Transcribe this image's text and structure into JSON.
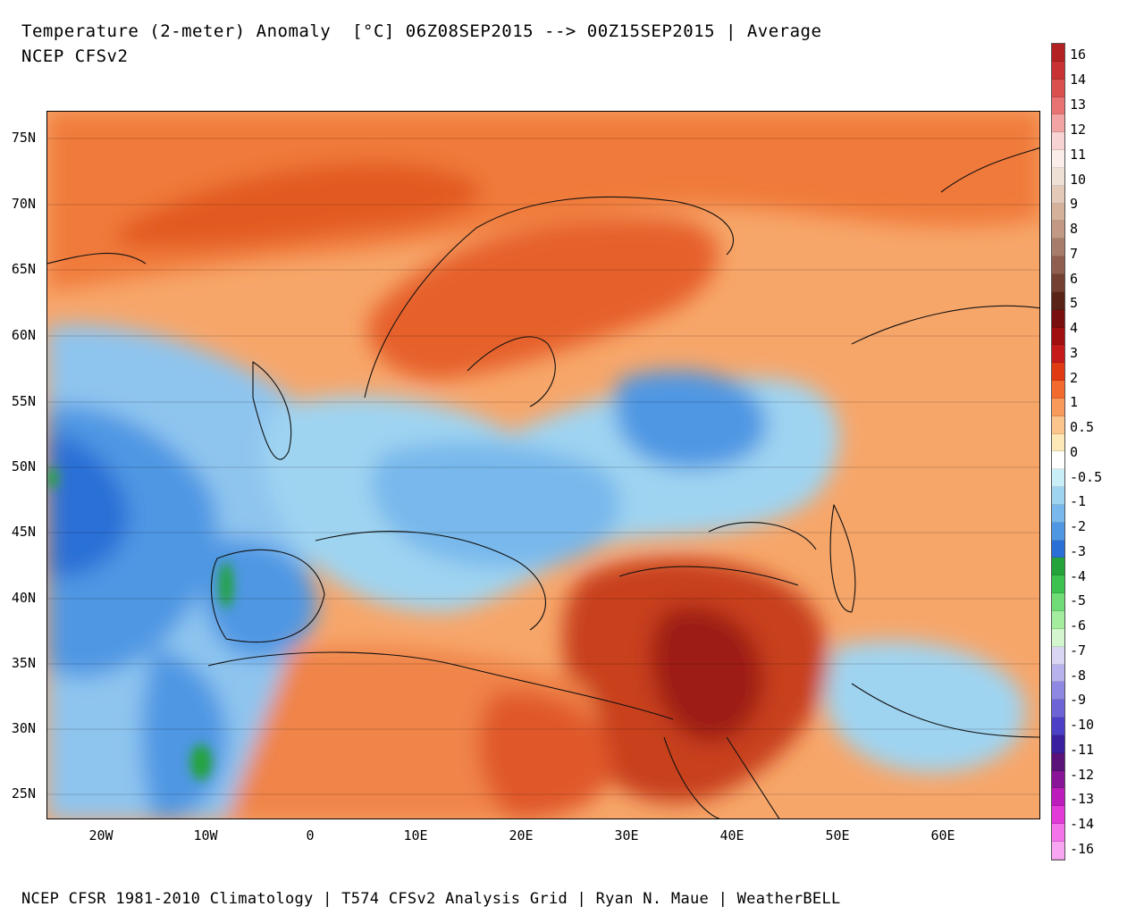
{
  "header": {
    "title": "Temperature (2-meter) Anomaly  [°C] 06Z08SEP2015 --> 00Z15SEP2015 | Average",
    "subtitle": "NCEP CFSv2"
  },
  "footer": {
    "text": "NCEP CFSR 1981-2010 Climatology | T574 CFSv2 Analysis Grid | Ryan N. Maue | WeatherBELL"
  },
  "map": {
    "latitude_labels": [
      "75N",
      "70N",
      "65N",
      "60N",
      "55N",
      "50N",
      "45N",
      "40N",
      "35N",
      "30N",
      "25N"
    ],
    "longitude_labels": [
      "20W",
      "10W",
      "0",
      "10E",
      "20E",
      "30E",
      "40E",
      "50E",
      "60E"
    ]
  },
  "colorbar": {
    "unit": "°C",
    "labels": [
      "16",
      "14",
      "13",
      "12",
      "11",
      "10",
      "9",
      "8",
      "7",
      "6",
      "5",
      "4",
      "3",
      "2",
      "1",
      "0.5",
      "0",
      "-0.5",
      "-1",
      "-2",
      "-3",
      "-4",
      "-5",
      "-6",
      "-7",
      "-8",
      "-9",
      "-10",
      "-11",
      "-12",
      "-13",
      "-14",
      "-16"
    ],
    "colors": [
      "#b22222",
      "#c83232",
      "#d9504f",
      "#e87373",
      "#f2a3a3",
      "#f8d3d3",
      "#fbeee8",
      "#efe0d6",
      "#e2c9b8",
      "#d4b19a",
      "#c19985",
      "#a87c6a",
      "#8f5e4e",
      "#734032",
      "#5a2318",
      "#7a0f0f",
      "#a01010",
      "#c41a1a",
      "#e03a12",
      "#f26a2e",
      "#f79a5a",
      "#fbc58c",
      "#fde9b8",
      "#ffffff",
      "#c9eef7",
      "#9fd4f1",
      "#78b8ec",
      "#4f97e3",
      "#2a6fd6",
      "#23a33a",
      "#3cc24e",
      "#6fdc78",
      "#a4ec9e",
      "#d3f6cf",
      "#d9d6f4",
      "#b7b2ec",
      "#8f88e2",
      "#6c64d6",
      "#4b40c6",
      "#3a1f9e",
      "#5b137a",
      "#8a1498",
      "#bd1cbc",
      "#e23ad8",
      "#f373e9",
      "#f8a6f1"
    ]
  }
}
